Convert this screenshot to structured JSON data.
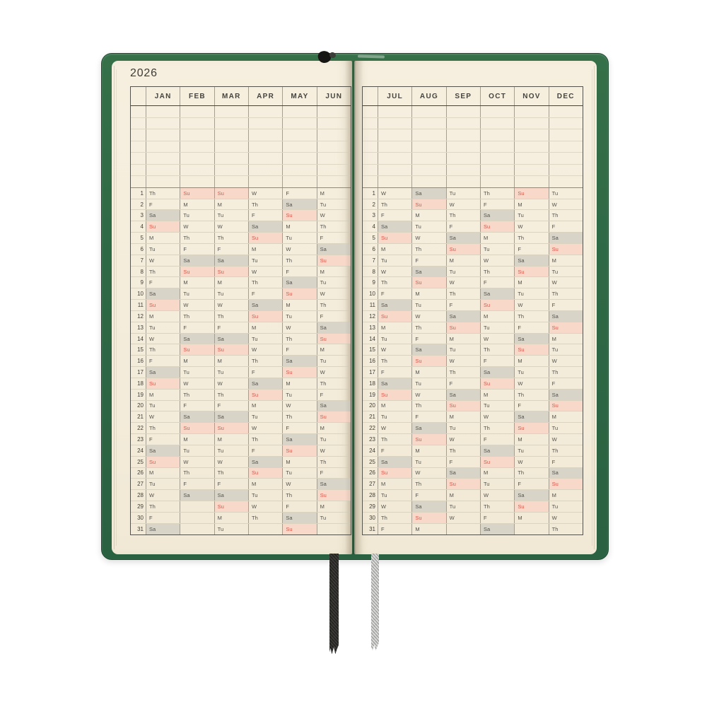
{
  "title": "2026",
  "grid": {
    "blank_rows": 7,
    "day_rows": 31,
    "day_numbers": [
      1,
      2,
      3,
      4,
      5,
      6,
      7,
      8,
      9,
      10,
      11,
      12,
      13,
      14,
      15,
      16,
      17,
      18,
      19,
      20,
      21,
      22,
      23,
      24,
      25,
      26,
      27,
      28,
      29,
      30,
      31
    ]
  },
  "colors": {
    "cover_green": "#2e6945",
    "page_cream": "#f5eedd",
    "saturday_bg": "#d8d4c8",
    "sunday_bg": "#f8d8c9",
    "sunday_text": "#d9584a",
    "weekday_text": "#53524c",
    "grid_dark_line": "#54524a",
    "grid_light_line": "#d9d3c0"
  },
  "bookmarks": [
    {
      "name": "black ribbon",
      "color": "#2b2b29"
    },
    {
      "name": "gray ribbon",
      "color": "#bcbcba"
    }
  ],
  "pages": [
    {
      "id": "left",
      "months": [
        {
          "label": "JAN",
          "days": [
            "Th",
            "F",
            "Sa",
            "Su",
            "M",
            "Tu",
            "W",
            "Th",
            "F",
            "Sa",
            "Su",
            "M",
            "Tu",
            "W",
            "Th",
            "F",
            "Sa",
            "Su",
            "M",
            "Tu",
            "W",
            "Th",
            "F",
            "Sa",
            "Su",
            "M",
            "Tu",
            "W",
            "Th",
            "F",
            "Sa"
          ]
        },
        {
          "label": "FEB",
          "days": [
            "Su",
            "M",
            "Tu",
            "W",
            "Th",
            "F",
            "Sa",
            "Su",
            "M",
            "Tu",
            "W",
            "Th",
            "F",
            "Sa",
            "Su",
            "M",
            "Tu",
            "W",
            "Th",
            "F",
            "Sa",
            "Su",
            "M",
            "Tu",
            "W",
            "Th",
            "F",
            "Sa",
            null,
            null,
            null
          ]
        },
        {
          "label": "MAR",
          "days": [
            "Su",
            "M",
            "Tu",
            "W",
            "Th",
            "F",
            "Sa",
            "Su",
            "M",
            "Tu",
            "W",
            "Th",
            "F",
            "Sa",
            "Su",
            "M",
            "Tu",
            "W",
            "Th",
            "F",
            "Sa",
            "Su",
            "M",
            "Tu",
            "W",
            "Th",
            "F",
            "Sa",
            "Su",
            "M",
            "Tu"
          ]
        },
        {
          "label": "APR",
          "days": [
            "W",
            "Th",
            "F",
            "Sa",
            "Su",
            "M",
            "Tu",
            "W",
            "Th",
            "F",
            "Sa",
            "Su",
            "M",
            "Tu",
            "W",
            "Th",
            "F",
            "Sa",
            "Su",
            "M",
            "Tu",
            "W",
            "Th",
            "F",
            "Sa",
            "Su",
            "M",
            "Tu",
            "W",
            "Th",
            null
          ]
        },
        {
          "label": "MAY",
          "days": [
            "F",
            "Sa",
            "Su",
            "M",
            "Tu",
            "W",
            "Th",
            "F",
            "Sa",
            "Su",
            "M",
            "Tu",
            "W",
            "Th",
            "F",
            "Sa",
            "Su",
            "M",
            "Tu",
            "W",
            "Th",
            "F",
            "Sa",
            "Su",
            "M",
            "Tu",
            "W",
            "Th",
            "F",
            "Sa",
            "Su"
          ]
        },
        {
          "label": "JUN",
          "days": [
            "M",
            "Tu",
            "W",
            "Th",
            "F",
            "Sa",
            "Su",
            "M",
            "Tu",
            "W",
            "Th",
            "F",
            "Sa",
            "Su",
            "M",
            "Tu",
            "W",
            "Th",
            "F",
            "Sa",
            "Su",
            "M",
            "Tu",
            "W",
            "Th",
            "F",
            "Sa",
            "Su",
            "M",
            "Tu",
            null
          ]
        }
      ]
    },
    {
      "id": "right",
      "months": [
        {
          "label": "JUL",
          "days": [
            "W",
            "Th",
            "F",
            "Sa",
            "Su",
            "M",
            "Tu",
            "W",
            "Th",
            "F",
            "Sa",
            "Su",
            "M",
            "Tu",
            "W",
            "Th",
            "F",
            "Sa",
            "Su",
            "M",
            "Tu",
            "W",
            "Th",
            "F",
            "Sa",
            "Su",
            "M",
            "Tu",
            "W",
            "Th",
            "F"
          ]
        },
        {
          "label": "AUG",
          "days": [
            "Sa",
            "Su",
            "M",
            "Tu",
            "W",
            "Th",
            "F",
            "Sa",
            "Su",
            "M",
            "Tu",
            "W",
            "Th",
            "F",
            "Sa",
            "Su",
            "M",
            "Tu",
            "W",
            "Th",
            "F",
            "Sa",
            "Su",
            "M",
            "Tu",
            "W",
            "Th",
            "F",
            "Sa",
            "Su",
            "M"
          ]
        },
        {
          "label": "SEP",
          "days": [
            "Tu",
            "W",
            "Th",
            "F",
            "Sa",
            "Su",
            "M",
            "Tu",
            "W",
            "Th",
            "F",
            "Sa",
            "Su",
            "M",
            "Tu",
            "W",
            "Th",
            "F",
            "Sa",
            "Su",
            "M",
            "Tu",
            "W",
            "Th",
            "F",
            "Sa",
            "Su",
            "M",
            "Tu",
            "W",
            null
          ]
        },
        {
          "label": "OCT",
          "days": [
            "Th",
            "F",
            "Sa",
            "Su",
            "M",
            "Tu",
            "W",
            "Th",
            "F",
            "Sa",
            "Su",
            "M",
            "Tu",
            "W",
            "Th",
            "F",
            "Sa",
            "Su",
            "M",
            "Tu",
            "W",
            "Th",
            "F",
            "Sa",
            "Su",
            "M",
            "Tu",
            "W",
            "Th",
            "F",
            "Sa"
          ]
        },
        {
          "label": "NOV",
          "days": [
            "Su",
            "M",
            "Tu",
            "W",
            "Th",
            "F",
            "Sa",
            "Su",
            "M",
            "Tu",
            "W",
            "Th",
            "F",
            "Sa",
            "Su",
            "M",
            "Tu",
            "W",
            "Th",
            "F",
            "Sa",
            "Su",
            "M",
            "Tu",
            "W",
            "Th",
            "F",
            "Sa",
            "Su",
            "M",
            null
          ]
        },
        {
          "label": "DEC",
          "days": [
            "Tu",
            "W",
            "Th",
            "F",
            "Sa",
            "Su",
            "M",
            "Tu",
            "W",
            "Th",
            "F",
            "Sa",
            "Su",
            "M",
            "Tu",
            "W",
            "Th",
            "F",
            "Sa",
            "Su",
            "M",
            "Tu",
            "W",
            "Th",
            "F",
            "Sa",
            "Su",
            "M",
            "Tu",
            "W",
            "Th"
          ]
        }
      ]
    }
  ]
}
